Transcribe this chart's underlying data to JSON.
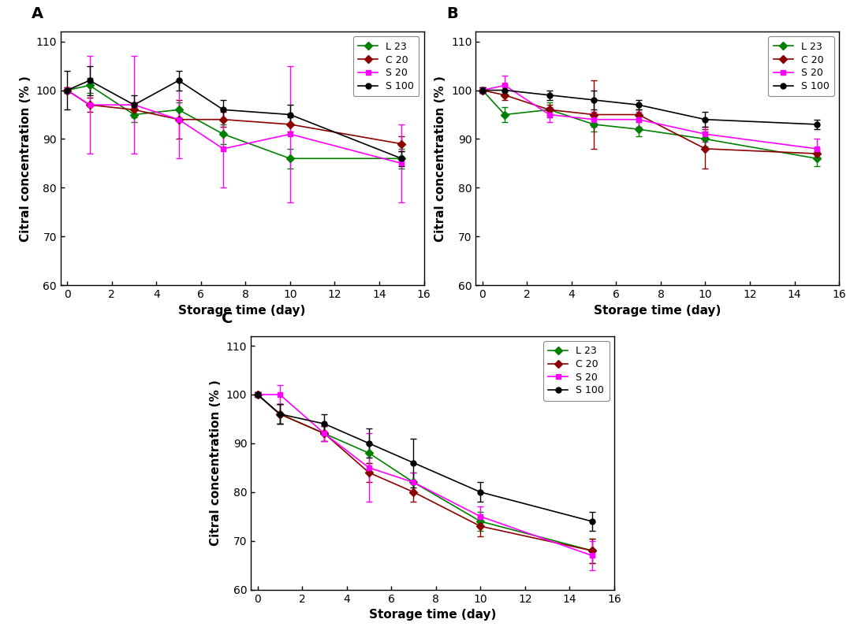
{
  "x": [
    0,
    1,
    3,
    5,
    7,
    10,
    15
  ],
  "panels": [
    {
      "label": "A",
      "series": {
        "L23": {
          "y": [
            100,
            101,
            95,
            96,
            91,
            86,
            86
          ],
          "yerr": [
            0.5,
            1.5,
            1.5,
            1.5,
            2.0,
            2.0,
            2.0
          ],
          "color": "#008000",
          "marker": "D"
        },
        "C20": {
          "y": [
            100,
            97,
            96,
            94,
            94,
            93,
            89
          ],
          "yerr": [
            0.5,
            1.5,
            1.5,
            4.0,
            1.5,
            1.5,
            1.5
          ],
          "color": "#8B0000",
          "marker": "D"
        },
        "S20": {
          "y": [
            100,
            97,
            97,
            94,
            88,
            91,
            85
          ],
          "yerr": [
            0.5,
            10.0,
            10.0,
            8.0,
            8.0,
            14.0,
            8.0
          ],
          "color": "#FF00FF",
          "marker": "s"
        },
        "S100": {
          "y": [
            100,
            102,
            97,
            102,
            96,
            95,
            86
          ],
          "yerr": [
            4.0,
            3.0,
            2.0,
            2.0,
            2.0,
            2.0,
            1.5
          ],
          "color": "#000000",
          "marker": "o"
        }
      }
    },
    {
      "label": "B",
      "series": {
        "L23": {
          "y": [
            100,
            95,
            96,
            93,
            92,
            90,
            86
          ],
          "yerr": [
            0.5,
            1.5,
            1.5,
            1.5,
            1.5,
            1.5,
            1.5
          ],
          "color": "#008000",
          "marker": "D"
        },
        "C20": {
          "y": [
            100,
            99,
            96,
            95,
            95,
            88,
            87
          ],
          "yerr": [
            0.5,
            1.0,
            1.0,
            7.0,
            1.0,
            4.0,
            1.0
          ],
          "color": "#8B0000",
          "marker": "D"
        },
        "S20": {
          "y": [
            100,
            101,
            95,
            94,
            94,
            91,
            88
          ],
          "yerr": [
            0.5,
            2.0,
            1.5,
            1.5,
            1.5,
            1.5,
            2.0
          ],
          "color": "#FF00FF",
          "marker": "s"
        },
        "S100": {
          "y": [
            100,
            100,
            99,
            98,
            97,
            94,
            93
          ],
          "yerr": [
            0.5,
            1.0,
            1.0,
            2.0,
            1.0,
            1.5,
            1.0
          ],
          "color": "#000000",
          "marker": "o"
        }
      }
    },
    {
      "label": "C",
      "series": {
        "L23": {
          "y": [
            100,
            96,
            92,
            88,
            82,
            74,
            68
          ],
          "yerr": [
            0.5,
            2.0,
            1.5,
            2.0,
            2.0,
            2.0,
            2.5
          ],
          "color": "#008000",
          "marker": "D"
        },
        "C20": {
          "y": [
            100,
            96,
            92,
            84,
            80,
            73,
            68
          ],
          "yerr": [
            0.5,
            2.0,
            1.5,
            2.0,
            2.0,
            2.0,
            2.5
          ],
          "color": "#8B0000",
          "marker": "D"
        },
        "S20": {
          "y": [
            100,
            100,
            92,
            85,
            82,
            75,
            67
          ],
          "yerr": [
            0.5,
            2.0,
            1.5,
            7.0,
            2.0,
            2.0,
            3.0
          ],
          "color": "#FF00FF",
          "marker": "s"
        },
        "S100": {
          "y": [
            100,
            96,
            94,
            90,
            86,
            80,
            74
          ],
          "yerr": [
            0.5,
            2.0,
            2.0,
            3.0,
            5.0,
            2.0,
            2.0
          ],
          "color": "#000000",
          "marker": "o"
        }
      }
    }
  ],
  "legend_labels": [
    "L 23",
    "C 20",
    "S 20",
    "S 100"
  ],
  "series_keys": [
    "L23",
    "C20",
    "S20",
    "S100"
  ],
  "xlabel": "Storage time (day)",
  "ylabel": "Citral concentration (% )",
  "ylim": [
    60,
    112
  ],
  "xlim": [
    -0.3,
    16
  ],
  "xticks": [
    0,
    2,
    4,
    6,
    8,
    10,
    12,
    14,
    16
  ],
  "yticks": [
    60,
    70,
    80,
    90,
    100,
    110
  ],
  "background_color": "#ffffff",
  "fig_width": 10.97,
  "fig_height": 8.05,
  "dpi": 100
}
